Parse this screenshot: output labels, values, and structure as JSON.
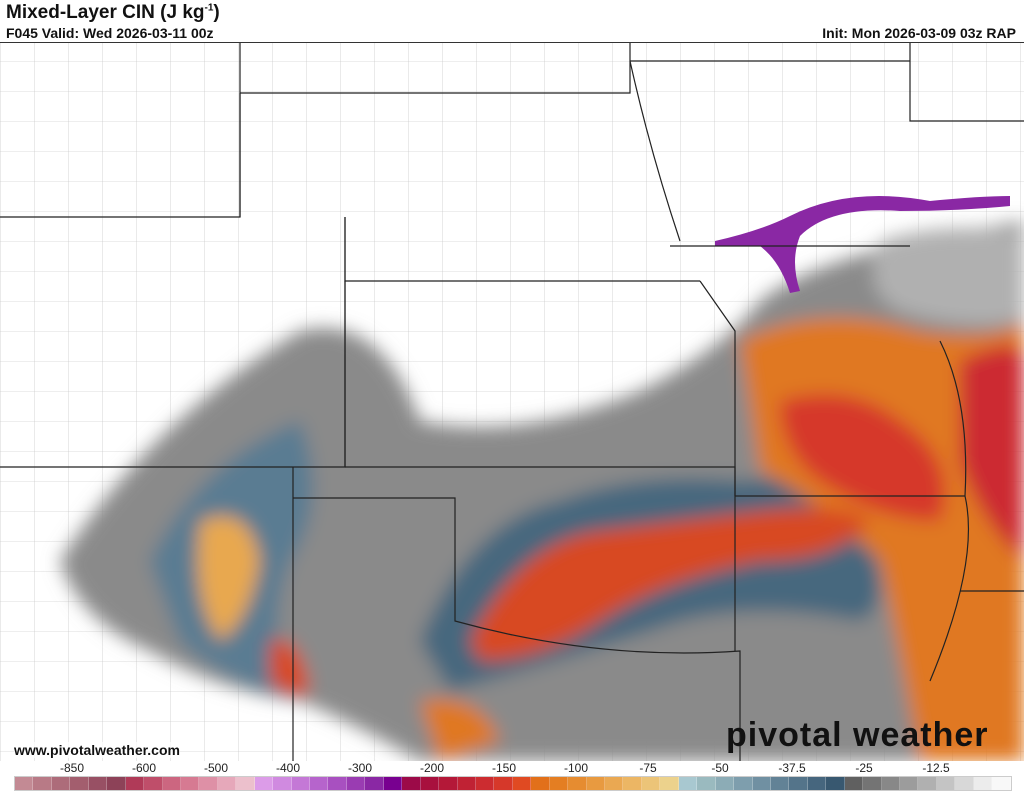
{
  "header": {
    "title": "Mixed-Layer CIN (J kg",
    "title_sup": "-1",
    "title_end": ")",
    "valid": "F045 Valid: Wed 2026-03-11 00z",
    "init": "Init: Mon 2026-03-09 03z RAP"
  },
  "footer": {
    "url": "www.pivotalweather.com",
    "logo": "pivotal weather"
  },
  "colorbar": {
    "labels": [
      "-850",
      "-600",
      "-500",
      "-400",
      "-300",
      "-200",
      "-150",
      "-100",
      "-75",
      "-50",
      "-37.5",
      "-25",
      "-12.5"
    ],
    "colors": [
      "#c38a94",
      "#b87a86",
      "#ad6c7a",
      "#a35e6e",
      "#985064",
      "#8d4258",
      "#b03a58",
      "#bf4e6a",
      "#cc6680",
      "#d67a92",
      "#de90a6",
      "#e6a8ba",
      "#ecc0cc",
      "#dc9ce8",
      "#d08ae0",
      "#c478d6",
      "#b664cc",
      "#a850c0",
      "#9a3cb2",
      "#8a28a4",
      "#780090",
      "#9c0a48",
      "#a8103e",
      "#b41838",
      "#c02234",
      "#cc2c30",
      "#d6382a",
      "#e04a22",
      "#e2701a",
      "#e47e22",
      "#e68c30",
      "#e89a40",
      "#eaa852",
      "#ecb664",
      "#ecc478",
      "#ecd28c",
      "#a8c8d0",
      "#9ababf",
      "#8cacb6",
      "#7e9ead",
      "#7090a2",
      "#628296",
      "#54748a",
      "#46667e",
      "#385870",
      "#606060",
      "#747474",
      "#888888",
      "#9c9c9c",
      "#b0b0b0",
      "#c4c4c4",
      "#d8d8d8",
      "#ececec",
      "#f8f8f8"
    ]
  }
}
